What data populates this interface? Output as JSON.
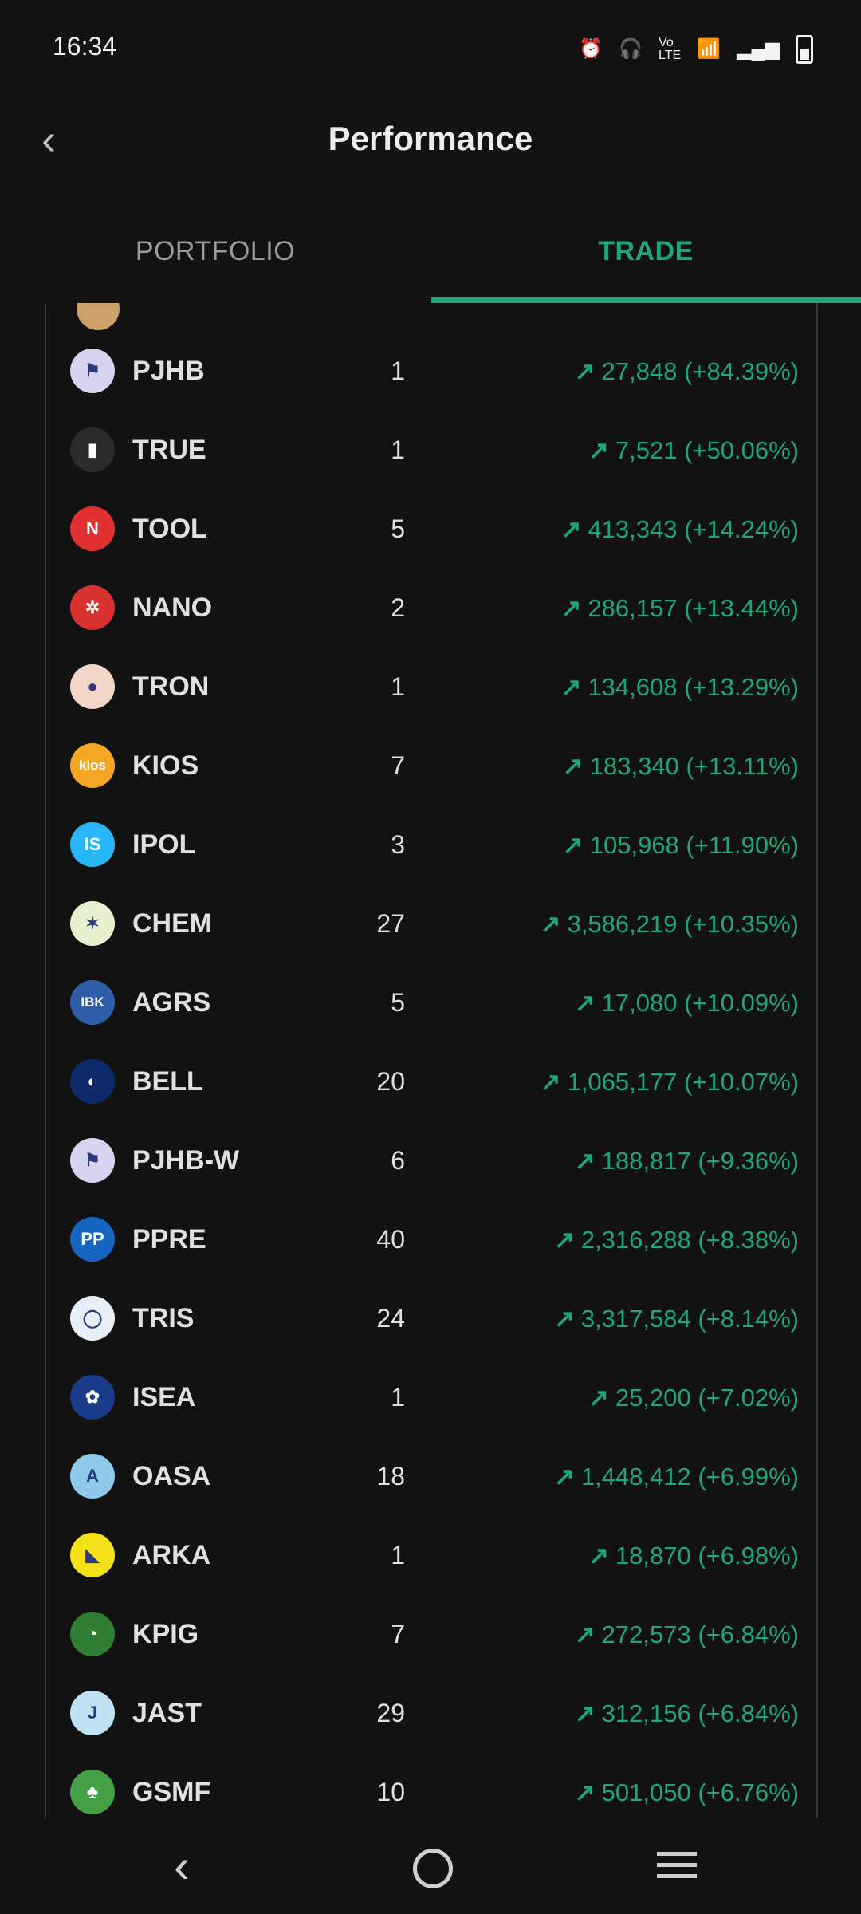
{
  "status_bar": {
    "time": "16:34",
    "icons": [
      "alarm-icon",
      "headphones-icon",
      "volte-icon",
      "wifi-icon",
      "signal-icon",
      "battery-icon"
    ]
  },
  "header": {
    "title": "Performance"
  },
  "tabs": [
    {
      "label": "PORTFOLIO",
      "active": false
    },
    {
      "label": "TRADE",
      "active": true
    }
  ],
  "colors": {
    "accent": "#1ea676",
    "background": "#121212"
  },
  "rows": [
    {
      "ticker": "PJHB",
      "qty": "1",
      "gain": "27,848 (+84.39%)",
      "logo_color": "#d8d4f0",
      "logo_text": "⚑"
    },
    {
      "ticker": "TRUE",
      "qty": "1",
      "gain": "7,521 (+50.06%)",
      "logo_color": "#2b2b2b",
      "logo_text": "▮"
    },
    {
      "ticker": "TOOL",
      "qty": "5",
      "gain": "413,343 (+14.24%)",
      "logo_color": "#e03030",
      "logo_text": "N"
    },
    {
      "ticker": "NANO",
      "qty": "2",
      "gain": "286,157 (+13.44%)",
      "logo_color": "#d93030",
      "logo_text": "✲"
    },
    {
      "ticker": "TRON",
      "qty": "1",
      "gain": "134,608 (+13.29%)",
      "logo_color": "#f2d7c8",
      "logo_text": "●"
    },
    {
      "ticker": "KIOS",
      "qty": "7",
      "gain": "183,340 (+13.11%)",
      "logo_color": "#f5a623",
      "logo_text": "kios"
    },
    {
      "ticker": "IPOL",
      "qty": "3",
      "gain": "105,968 (+11.90%)",
      "logo_color": "#29b6f6",
      "logo_text": "IS"
    },
    {
      "ticker": "CHEM",
      "qty": "27",
      "gain": "3,586,219 (+10.35%)",
      "logo_color": "#e9f0d0",
      "logo_text": "✶"
    },
    {
      "ticker": "AGRS",
      "qty": "5",
      "gain": "17,080 (+10.09%)",
      "logo_color": "#2f5da8",
      "logo_text": "IBK"
    },
    {
      "ticker": "BELL",
      "qty": "20",
      "gain": "1,065,177 (+10.07%)",
      "logo_color": "#0d2a6b",
      "logo_text": "◐"
    },
    {
      "ticker": "PJHB-W",
      "qty": "6",
      "gain": "188,817 (+9.36%)",
      "logo_color": "#d8d4f0",
      "logo_text": "⚑"
    },
    {
      "ticker": "PPRE",
      "qty": "40",
      "gain": "2,316,288 (+8.38%)",
      "logo_color": "#1565c0",
      "logo_text": "PP"
    },
    {
      "ticker": "TRIS",
      "qty": "24",
      "gain": "3,317,584 (+8.14%)",
      "logo_color": "#e8eef6",
      "logo_text": "◯"
    },
    {
      "ticker": "ISEA",
      "qty": "1",
      "gain": "25,200 (+7.02%)",
      "logo_color": "#1a3a8a",
      "logo_text": "✿"
    },
    {
      "ticker": "OASA",
      "qty": "18",
      "gain": "1,448,412 (+6.99%)",
      "logo_color": "#8ec9ea",
      "logo_text": "A"
    },
    {
      "ticker": "ARKA",
      "qty": "1",
      "gain": "18,870 (+6.98%)",
      "logo_color": "#f5e11a",
      "logo_text": "◣"
    },
    {
      "ticker": "KPIG",
      "qty": "7",
      "gain": "272,573 (+6.84%)",
      "logo_color": "#2e7d32",
      "logo_text": "◔"
    },
    {
      "ticker": "JAST",
      "qty": "29",
      "gain": "312,156 (+6.84%)",
      "logo_color": "#bfe3f5",
      "logo_text": "J"
    },
    {
      "ticker": "GSMF",
      "qty": "10",
      "gain": "501,050 (+6.76%)",
      "logo_color": "#43a047",
      "logo_text": "♣"
    }
  ],
  "nav_bar": {
    "icons": [
      "back-icon",
      "home-icon",
      "recents-icon"
    ]
  }
}
